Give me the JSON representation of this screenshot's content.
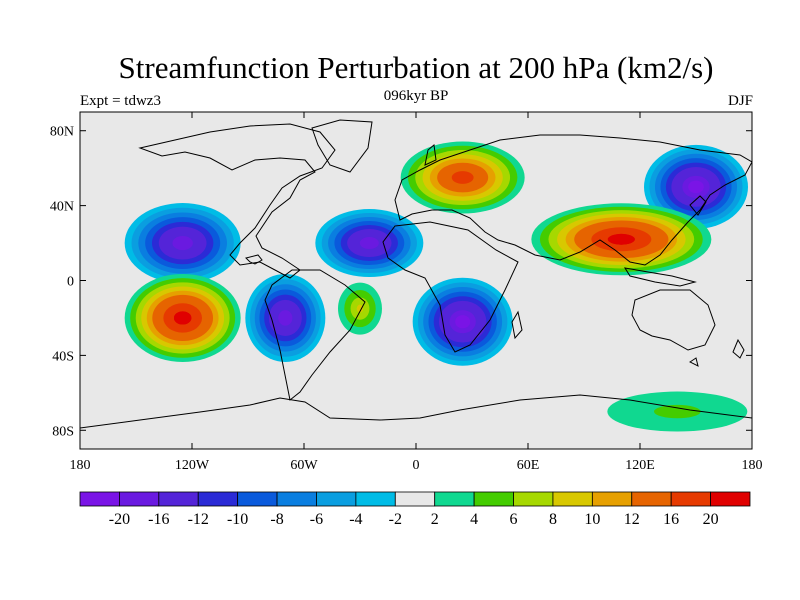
{
  "plot": {
    "title": "Streamfunction Perturbation at 200 hPa (km2/s)",
    "left_string": "Expt = tdwz3",
    "center_string": "096kyr BP",
    "right_string": "DJF"
  },
  "axes": {
    "x_ticks": [
      "180",
      "120W",
      "60W",
      "0",
      "60E",
      "120E",
      "180"
    ],
    "y_ticks": [
      "80N",
      "40N",
      "0",
      "40S",
      "80S"
    ],
    "background_color": "#e8e8e8"
  },
  "colorbar": {
    "labels": [
      "-20",
      "-16",
      "-12",
      "-10",
      "-8",
      "-6",
      "-4",
      "-2",
      "2",
      "4",
      "6",
      "8",
      "10",
      "12",
      "16",
      "20"
    ],
    "colors": [
      "#7a14e6",
      "#6a1ae0",
      "#5424d8",
      "#2b2bd6",
      "#0a5adc",
      "#0a7ee0",
      "#0a9ee0",
      "#00bce6",
      "#e8e8e8",
      "#10d890",
      "#44cc00",
      "#a6d800",
      "#d8c800",
      "#e6a000",
      "#e66400",
      "#e63a00",
      "#e00000"
    ]
  },
  "chart_data": {
    "type": "heatmap",
    "title": "Streamfunction Perturbation at 200 hPa (km2/s)",
    "units": "km2/s",
    "x_range": [
      -180,
      180
    ],
    "y_range": [
      -90,
      90
    ],
    "levels": [
      -20,
      -16,
      -12,
      -10,
      -8,
      -6,
      -4,
      -2,
      2,
      4,
      6,
      8,
      10,
      12,
      16,
      20
    ],
    "features": [
      {
        "lon": -125,
        "lat": 20,
        "value": -18
      },
      {
        "lon": -25,
        "lat": 20,
        "value": -18
      },
      {
        "lon": 150,
        "lat": 50,
        "value": -20
      },
      {
        "lon": -70,
        "lat": -20,
        "value": -18
      },
      {
        "lon": 25,
        "lat": -22,
        "value": -20
      },
      {
        "lon": -125,
        "lat": -20,
        "value": 22
      },
      {
        "lon": 25,
        "lat": 55,
        "value": 18
      },
      {
        "lon": 110,
        "lat": 22,
        "value": 22
      },
      {
        "lon": -30,
        "lat": -15,
        "value": 8
      },
      {
        "lon": 140,
        "lat": -70,
        "value": 4
      }
    ]
  }
}
